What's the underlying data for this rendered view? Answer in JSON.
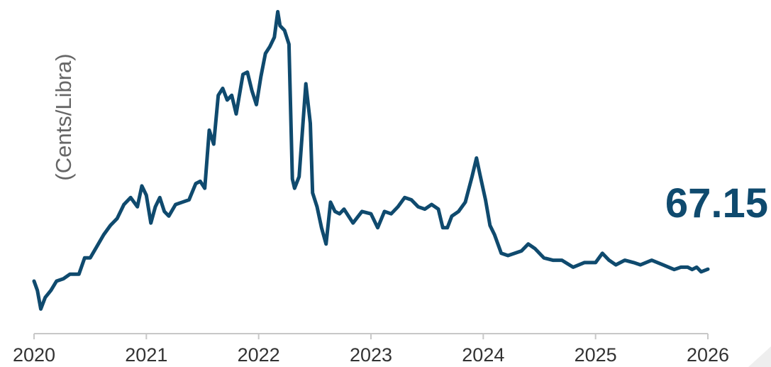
{
  "chart_data": {
    "type": "line",
    "title": "",
    "xlabel": "",
    "ylabel": "(Cents/Libra)",
    "last_value_label": "67.15",
    "x_tick_labels": [
      "2020",
      "2021",
      "2022",
      "2023",
      "2024",
      "2025",
      "2026"
    ],
    "xlim": [
      2020.0,
      2026.0
    ],
    "ylim": [
      40,
      180
    ],
    "grid": false,
    "legend": "none",
    "line_color": "#0f4a6e",
    "axis_color": "#c8c8c8",
    "series": [
      {
        "x": [
          2020.0,
          2020.03,
          2020.06,
          2020.1,
          2020.15,
          2020.2,
          2020.26,
          2020.32,
          2020.4,
          2020.45,
          2020.5,
          2020.56,
          2020.62,
          2020.68,
          2020.74,
          2020.8,
          2020.86,
          2020.92,
          2020.96,
          2021.0,
          2021.04,
          2021.08,
          2021.12,
          2021.16,
          2021.2,
          2021.26,
          2021.32,
          2021.38,
          2021.44,
          2021.48,
          2021.52,
          2021.56,
          2021.6,
          2021.64,
          2021.68,
          2021.72,
          2021.76,
          2021.8,
          2021.86,
          2021.9,
          2021.94,
          2021.98,
          2022.02,
          2022.06,
          2022.1,
          2022.14,
          2022.17,
          2022.19,
          2022.23,
          2022.27,
          2022.3,
          2022.32,
          2022.36,
          2022.42,
          2022.46,
          2022.48,
          2022.52,
          2022.56,
          2022.6,
          2022.64,
          2022.68,
          2022.72,
          2022.76,
          2022.84,
          2022.92,
          2023.0,
          2023.06,
          2023.12,
          2023.18,
          2023.24,
          2023.3,
          2023.36,
          2023.42,
          2023.48,
          2023.54,
          2023.6,
          2023.64,
          2023.68,
          2023.72,
          2023.78,
          2023.84,
          2023.9,
          2023.94,
          2023.97,
          2024.02,
          2024.06,
          2024.1,
          2024.16,
          2024.22,
          2024.28,
          2024.34,
          2024.4,
          2024.46,
          2024.54,
          2024.62,
          2024.7,
          2024.8,
          2024.9,
          2025.0,
          2025.06,
          2025.12,
          2025.18,
          2025.26,
          2025.34,
          2025.4,
          2025.5,
          2025.6,
          2025.7,
          2025.76,
          2025.82,
          2025.86,
          2025.9,
          2025.94,
          2026.0
        ],
        "values": [
          62,
          58,
          50,
          55,
          58,
          62,
          63,
          65,
          65,
          72,
          72,
          77,
          82,
          86,
          89,
          95,
          98,
          94,
          103,
          99,
          87,
          94,
          98,
          92,
          90,
          95,
          96,
          97,
          104,
          105,
          102,
          127,
          121,
          142,
          145,
          140,
          142,
          134,
          151,
          152,
          144,
          138,
          150,
          160,
          163,
          167,
          178,
          172,
          170,
          164,
          106,
          102,
          107,
          147,
          130,
          100,
          94,
          85,
          78,
          96,
          92,
          91,
          93,
          87,
          92,
          91,
          85,
          92,
          91,
          94,
          98,
          97,
          94,
          93,
          95,
          93,
          85,
          85,
          90,
          92,
          96,
          107,
          115,
          108,
          97,
          86,
          82,
          74,
          73,
          74,
          75,
          78,
          76,
          72,
          71,
          71,
          68,
          70,
          70,
          74,
          71,
          69,
          71,
          70,
          69,
          71,
          69,
          67,
          68,
          68,
          67,
          68,
          66,
          67.15
        ]
      }
    ]
  }
}
